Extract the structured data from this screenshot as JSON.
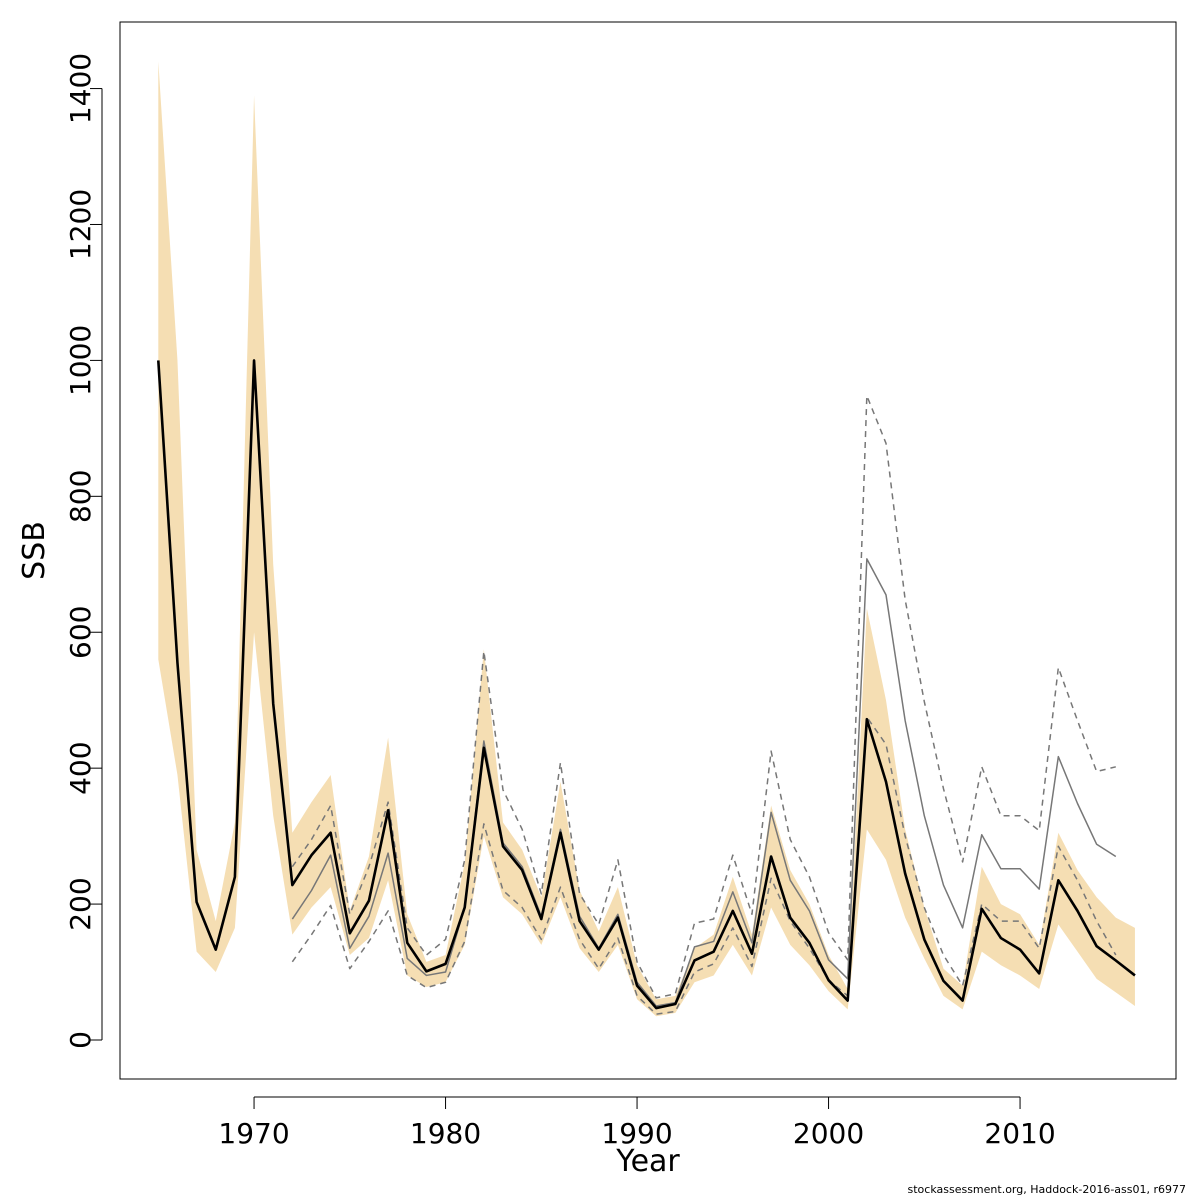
{
  "chart_data": {
    "type": "line",
    "xlabel": "Year",
    "ylabel": "SSB",
    "xlim": [
      1963,
      2017.5
    ],
    "ylim": [
      -57,
      1496
    ],
    "x_ticks": [
      1970,
      1980,
      1990,
      2000,
      2010
    ],
    "y_ticks": [
      0,
      200,
      400,
      600,
      800,
      1000,
      1200,
      1400
    ],
    "grid": false,
    "legend": "none",
    "colors": {
      "band": "#f5deb3",
      "estimate": "#000000",
      "previous": "#777777"
    },
    "confidence_band": {
      "x": [
        1965,
        1966,
        1967,
        1968,
        1969,
        1970,
        1971,
        1972,
        1973,
        1974,
        1975,
        1976,
        1977,
        1978,
        1979,
        1980,
        1981,
        1982,
        1983,
        1984,
        1985,
        1986,
        1987,
        1988,
        1989,
        1990,
        1991,
        1992,
        1993,
        1994,
        1995,
        1996,
        1997,
        1998,
        1999,
        2000,
        2001,
        2002,
        2003,
        2004,
        2005,
        2006,
        2007,
        2008,
        2009,
        2010,
        2011,
        2012,
        2013,
        2014,
        2015,
        2016
      ],
      "upper": [
        1440,
        1000,
        280,
        175,
        320,
        1390,
        700,
        305,
        350,
        390,
        190,
        270,
        445,
        185,
        115,
        125,
        260,
        575,
        320,
        280,
        210,
        380,
        220,
        160,
        225,
        110,
        60,
        65,
        135,
        155,
        240,
        155,
        345,
        250,
        200,
        125,
        75,
        635,
        500,
        310,
        195,
        105,
        80,
        255,
        200,
        185,
        140,
        305,
        250,
        210,
        180,
        165
      ],
      "lower": [
        560,
        390,
        130,
        100,
        165,
        600,
        330,
        155,
        195,
        225,
        125,
        150,
        235,
        95,
        78,
        85,
        140,
        300,
        210,
        185,
        140,
        210,
        135,
        100,
        140,
        60,
        35,
        40,
        85,
        95,
        140,
        95,
        195,
        140,
        110,
        72,
        45,
        310,
        265,
        180,
        120,
        65,
        45,
        130,
        110,
        95,
        75,
        170,
        130,
        90,
        70,
        50
      ]
    },
    "series": [
      {
        "x": [
          1965,
          1966,
          1967,
          1968,
          1969,
          1970,
          1971,
          1972,
          1973,
          1974,
          1975,
          1976,
          1977,
          1978,
          1979,
          1980,
          1981,
          1982,
          1983,
          1984,
          1985,
          1986,
          1987,
          1988,
          1989,
          1990,
          1991,
          1992,
          1993,
          1994,
          1995,
          1996,
          1997,
          1998,
          1999,
          2000,
          2001,
          2002,
          2003,
          2004,
          2005,
          2006,
          2007,
          2008,
          2009,
          2010,
          2011,
          2012,
          2013,
          2014,
          2015,
          2016
        ],
        "values": [
          1000,
          555,
          203,
          133,
          240,
          1000,
          495,
          228,
          272,
          305,
          157,
          205,
          338,
          143,
          101,
          112,
          195,
          430,
          285,
          250,
          178,
          305,
          175,
          133,
          180,
          80,
          47,
          53,
          117,
          130,
          190,
          127,
          270,
          180,
          143,
          88,
          58,
          472,
          380,
          245,
          148,
          87,
          58,
          193,
          150,
          133,
          98,
          235,
          190,
          138,
          117,
          95
        ]
      },
      {
        "x": [
          1972,
          1973,
          1974,
          1975,
          1976,
          1977,
          1978,
          1979,
          1980,
          1981,
          1982,
          1983,
          1984,
          1985,
          1986,
          1987,
          1988,
          1989,
          1990,
          1991,
          1992,
          1993,
          1994,
          1995,
          1996,
          1997,
          1998,
          1999,
          2000,
          2001,
          2002,
          2003,
          2004,
          2005,
          2006,
          2007,
          2008,
          2009,
          2010,
          2011,
          2012,
          2013,
          2014,
          2015
        ],
        "values": [
          178,
          220,
          272,
          135,
          182,
          275,
          120,
          95,
          100,
          195,
          440,
          290,
          255,
          182,
          310,
          182,
          135,
          185,
          85,
          50,
          55,
          137,
          145,
          218,
          143,
          335,
          235,
          190,
          118,
          90,
          708,
          655,
          470,
          330,
          228,
          165,
          302,
          252,
          252,
          222,
          417,
          348,
          288,
          270
        ]
      },
      {
        "x": [
          1972,
          1973,
          1974,
          1975,
          1976,
          1977,
          1978,
          1979,
          1980,
          1981,
          1982,
          1983,
          1984,
          1985,
          1986,
          1987,
          1988,
          1989,
          1990,
          1991,
          1992,
          1993,
          1994,
          1995,
          1996,
          1997,
          1998,
          1999,
          2000,
          2001,
          2002,
          2003,
          2004,
          2005,
          2006,
          2007,
          2008,
          2009,
          2010,
          2011,
          2012,
          2013,
          2014,
          2015
        ],
        "values": [
          255,
          295,
          345,
          185,
          255,
          350,
          165,
          125,
          148,
          265,
          572,
          368,
          310,
          215,
          408,
          215,
          170,
          265,
          115,
          62,
          68,
          172,
          178,
          272,
          185,
          425,
          295,
          240,
          158,
          118,
          948,
          878,
          648,
          498,
          370,
          262,
          402,
          330,
          330,
          308,
          548,
          470,
          395,
          402
        ]
      },
      {
        "x": [
          1972,
          1973,
          1974,
          1975,
          1976,
          1977,
          1978,
          1979,
          1980,
          1981,
          1982,
          1983,
          1984,
          1985,
          1986,
          1987,
          1988,
          1989,
          1990,
          1991,
          1992,
          1993,
          1994,
          1995,
          1996,
          1997,
          1998,
          1999,
          2000,
          2001,
          2002,
          2003,
          2004,
          2005,
          2006,
          2007,
          2008,
          2009,
          2010,
          2011,
          2012,
          2013,
          2014,
          2015
        ],
        "values": [
          115,
          155,
          198,
          105,
          145,
          190,
          95,
          77,
          85,
          145,
          318,
          220,
          195,
          148,
          225,
          148,
          105,
          150,
          65,
          38,
          42,
          100,
          112,
          165,
          108,
          238,
          175,
          135,
          88,
          65,
          475,
          435,
          300,
          195,
          125,
          80,
          200,
          175,
          175,
          135,
          285,
          235,
          175,
          125
        ]
      }
    ]
  },
  "footer": "stockassessment.org, Haddock-2016-ass01, r6977"
}
